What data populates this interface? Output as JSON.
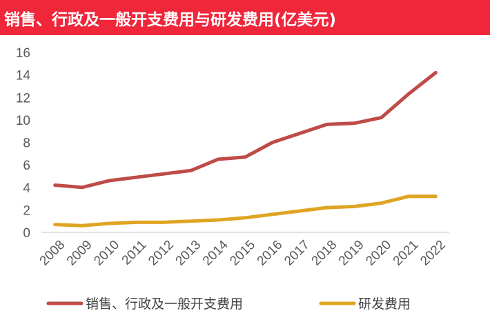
{
  "header": {
    "title": "销售、行政及一般开支费用与研发费用(亿美元)",
    "background_color": "#f0263a"
  },
  "chart_data": {
    "type": "line",
    "title": "销售、行政及一般开支费用与研发费用(亿美元)",
    "xlabel": "",
    "ylabel": "",
    "x": [
      "2008",
      "2009",
      "2010",
      "2011",
      "2012",
      "2013",
      "2014",
      "2015",
      "2016",
      "2017",
      "2018",
      "2019",
      "2020",
      "2021",
      "2022"
    ],
    "ylim": [
      0,
      16
    ],
    "yticks": [
      0,
      2,
      4,
      6,
      8,
      10,
      12,
      14,
      16
    ],
    "grid": false,
    "legend_position": "bottom",
    "series": [
      {
        "name": "销售、行政及一般开支费用",
        "color": "#be4b48",
        "values": [
          4.2,
          4.0,
          4.6,
          4.9,
          5.2,
          5.5,
          6.5,
          6.7,
          8.0,
          8.8,
          9.6,
          9.7,
          10.2,
          12.3,
          14.2
        ]
      },
      {
        "name": "研发费用",
        "color": "#e0a423",
        "values": [
          0.7,
          0.6,
          0.8,
          0.9,
          0.9,
          1.0,
          1.1,
          1.3,
          1.6,
          1.9,
          2.2,
          2.3,
          2.6,
          3.2,
          3.2
        ]
      }
    ]
  }
}
